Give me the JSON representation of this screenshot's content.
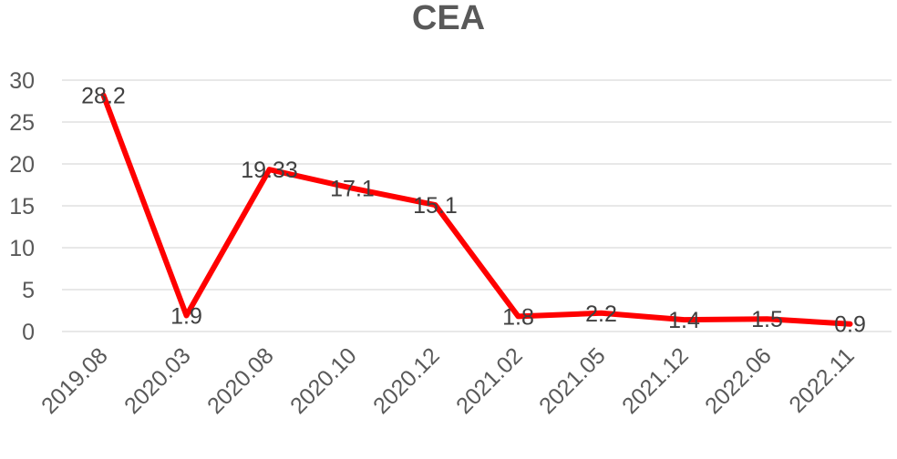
{
  "chart_data": {
    "type": "line",
    "title": "CEA",
    "categories": [
      "2019.08",
      "2020.03",
      "2020.08",
      "2020.10",
      "2020.12",
      "2021.02",
      "2021.05",
      "2021.12",
      "2022.06",
      "2022.11"
    ],
    "series": [
      {
        "values": [
          28.2,
          1.9,
          19.33,
          17.1,
          15.1,
          1.8,
          2.2,
          1.4,
          1.5,
          0.9
        ],
        "labels": [
          "28.2",
          "1.9",
          "19.33",
          "17.1",
          "15.1",
          "1.8",
          "2.2",
          "1.4",
          "1.5",
          "0.9"
        ],
        "color": "#ff0000"
      }
    ],
    "y_ticks": [
      "0",
      "5",
      "10",
      "15",
      "20",
      "25",
      "30"
    ],
    "ylim": [
      0,
      30
    ],
    "grid": true,
    "gridline_color": "#d9d9d9",
    "axis_text_color": "#595959"
  }
}
